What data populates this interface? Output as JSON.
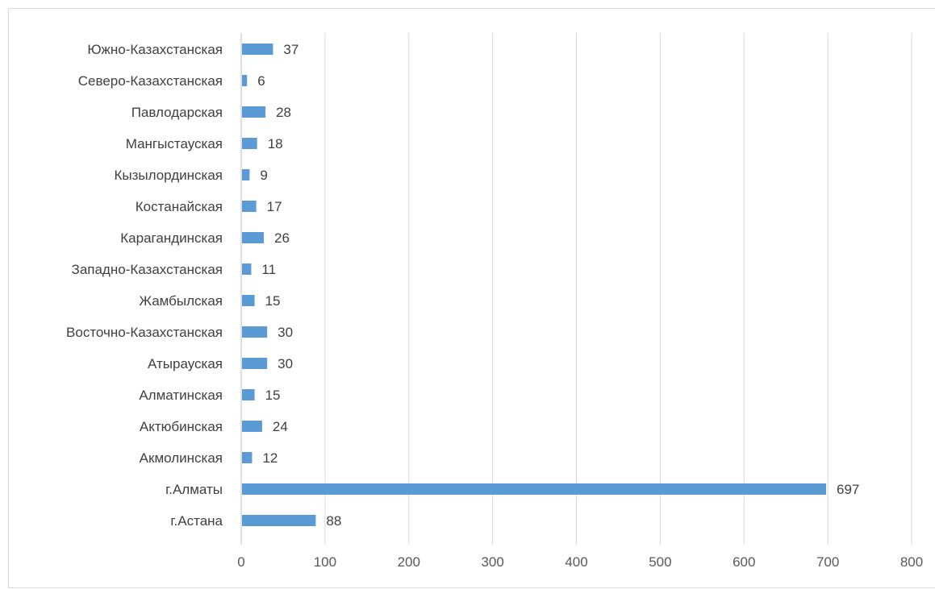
{
  "chart_data": {
    "type": "bar",
    "orientation": "horizontal",
    "title": "",
    "xlabel": "",
    "ylabel": "",
    "categories": [
      "Южно-Казахстанская",
      "Северо-Казахстанская",
      "Павлодарская",
      "Мангыстауская",
      "Кызылординская",
      "Костанайская",
      "Карагандинская",
      "Западно-Казахстанская",
      "Жамбылская",
      "Восточно-Казахстанская",
      "Атырауская",
      "Алматинская",
      "Актюбинская",
      "Акмолинская",
      "г.Алматы",
      "г.Астана"
    ],
    "values": [
      37,
      6,
      28,
      18,
      9,
      17,
      26,
      11,
      15,
      30,
      30,
      15,
      24,
      12,
      697,
      88
    ],
    "xlim": [
      0,
      800
    ],
    "xticks": [
      0,
      100,
      200,
      300,
      400,
      500,
      600,
      700,
      800
    ],
    "grid": "vertical",
    "data_labels": true,
    "bar_color": "#5b9bd5",
    "legend": "none"
  }
}
